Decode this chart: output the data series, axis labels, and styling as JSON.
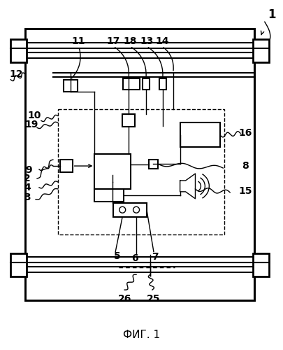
{
  "bg_color": "#ffffff",
  "title": "ФИГ. 1",
  "fig_width": 4.06,
  "fig_height": 5.0,
  "dpi": 100
}
